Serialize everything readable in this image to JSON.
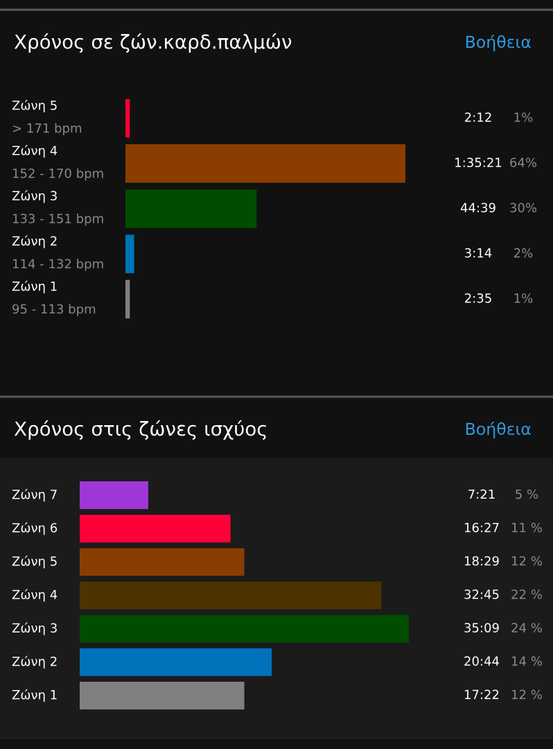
{
  "chart_data": [
    {
      "type": "bar",
      "orientation": "horizontal",
      "title": "Χρόνος σε ζών.καρδ.παλμών",
      "categories": [
        "Ζώνη 5\n> 171 bpm",
        "Ζώνη 4\n152 - 170 bpm",
        "Ζώνη 3\n133 - 151 bpm",
        "Ζώνη 2\n114 - 132 bpm",
        "Ζώνη 1\n95 - 113 bpm"
      ],
      "values": [
        1,
        64,
        30,
        2,
        1
      ],
      "colors": [
        "#ff0033",
        "#8b3d00",
        "#004d00",
        "#0072bb",
        "#808080"
      ],
      "value_labels": [
        "1%",
        "64%",
        "30%",
        "2%",
        "1%"
      ],
      "annotations": [
        "Βοήθεια",
        "2:12",
        "1:35:21",
        "44:39",
        "3:14",
        "2:35"
      ]
    },
    {
      "type": "bar",
      "orientation": "horizontal",
      "title": "Χρόνος στις ζώνες ισχύος",
      "categories": [
        "Ζώνη 7",
        "Ζώνη 6",
        "Ζώνη 5",
        "Ζώνη 4",
        "Ζώνη 3",
        "Ζώνη 2",
        "Ζώνη 1"
      ],
      "values": [
        5,
        11,
        12,
        22,
        24,
        14,
        12
      ],
      "colors": [
        "#a035d8",
        "#ff0038",
        "#8b3d00",
        "#4d3300",
        "#004d00",
        "#0072bb",
        "#808080"
      ],
      "value_labels": [
        "5 %",
        "11 %",
        "12 %",
        "22 %",
        "24 %",
        "14 %",
        "12 %"
      ],
      "annotations": [
        "Βοήθεια",
        "7:21",
        "16:27",
        "18:29",
        "32:45",
        "35:09",
        "20:44",
        "17:22"
      ]
    }
  ]
}
